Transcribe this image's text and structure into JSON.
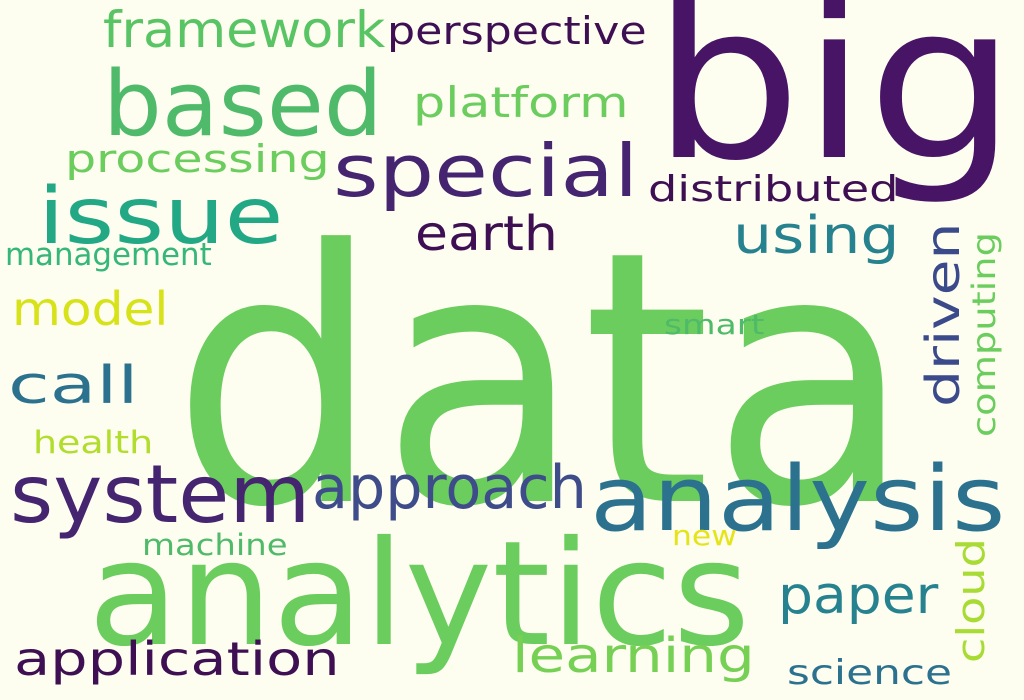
{
  "background_color": "#fdfdf0",
  "words": [
    {
      "text": "data",
      "color": "#6bcd5e"
    },
    {
      "text": "big",
      "color": "#481466"
    },
    {
      "text": "analytics",
      "color": "#6bcd5e"
    },
    {
      "text": "analysis",
      "color": "#2c728e"
    },
    {
      "text": "system",
      "color": "#452470"
    },
    {
      "text": "based",
      "color": "#4fba6a"
    },
    {
      "text": "special",
      "color": "#452470"
    },
    {
      "text": "issue",
      "color": "#22a884"
    },
    {
      "text": "approach",
      "color": "#3e4c8a"
    },
    {
      "text": "application",
      "color": "#3e0f52"
    },
    {
      "text": "framework",
      "color": "#58c463"
    },
    {
      "text": "learning",
      "color": "#75d054"
    },
    {
      "text": "paper",
      "color": "#26828e"
    },
    {
      "text": "using",
      "color": "#26828e"
    },
    {
      "text": "driven",
      "color": "#3b4a8a"
    },
    {
      "text": "earth",
      "color": "#3e0f52"
    },
    {
      "text": "perspective",
      "color": "#3e0f52"
    },
    {
      "text": "platform",
      "color": "#6bcd5e"
    },
    {
      "text": "call",
      "color": "#2c728e"
    },
    {
      "text": "model",
      "color": "#d7e219"
    },
    {
      "text": "processing",
      "color": "#6bcd5e"
    },
    {
      "text": "distributed",
      "color": "#3e0f52"
    },
    {
      "text": "computing",
      "color": "#6bcd5e"
    },
    {
      "text": "cloud",
      "color": "#a8db34"
    },
    {
      "text": "science",
      "color": "#2c728e"
    },
    {
      "text": "management",
      "color": "#35b779"
    },
    {
      "text": "health",
      "color": "#b2dd2d"
    },
    {
      "text": "machine",
      "color": "#4fba6a"
    },
    {
      "text": "smart",
      "color": "#4fba6a"
    },
    {
      "text": "new",
      "color": "#e5e419"
    }
  ]
}
